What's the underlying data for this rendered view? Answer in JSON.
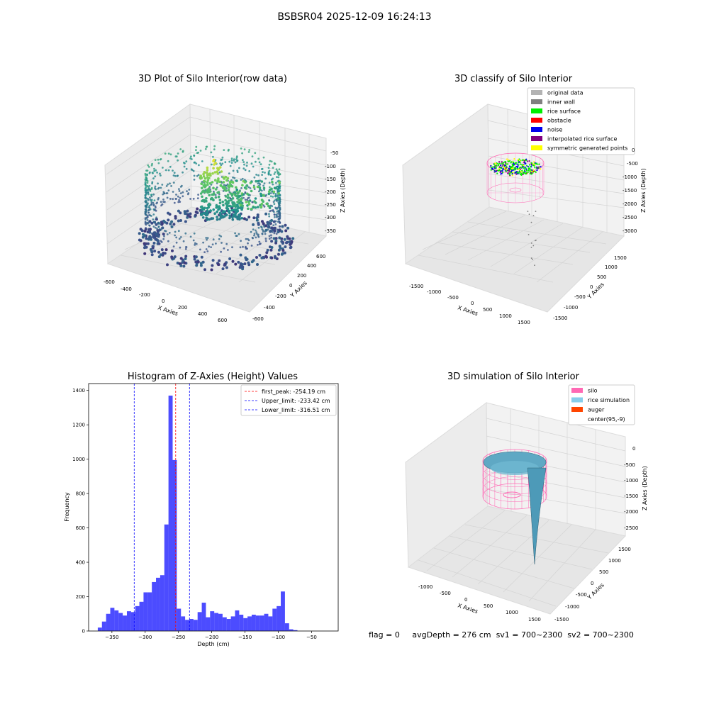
{
  "suptitle": "BSBSR04 2025-12-09 16:24:13",
  "panels": {
    "raw": {
      "title": "3D Plot of Silo Interior(row data)",
      "xlabel": "X Axies",
      "ylabel": "Y Axies",
      "zlabel": "Z Axies (Depth)",
      "xticks": [
        "-600",
        "-400",
        "-200",
        "0",
        "200",
        "400",
        "600"
      ],
      "yticks": [
        "600",
        "400",
        "200",
        "0",
        "-200",
        "-400",
        "-600"
      ],
      "zticks": [
        "-50",
        "-100",
        "-150",
        "-200",
        "-250",
        "-300",
        "-350"
      ]
    },
    "classify": {
      "title": "3D classify of Silo Interior",
      "xlabel": "X Axies",
      "ylabel": "Y Axies",
      "zlabel": "Z Axies (Depth)",
      "xticks": [
        "-1500",
        "-1000",
        "-500",
        "0",
        "500",
        "1000",
        "1500"
      ],
      "yticks": [
        "1500",
        "1000",
        "500",
        "0",
        "-500",
        "-1000",
        "-1500"
      ],
      "zticks": [
        "0",
        "-500",
        "-1000",
        "-1500",
        "-2000",
        "-2500",
        "-3000"
      ],
      "legend": [
        {
          "label": "original data",
          "color": "#b3b3b3"
        },
        {
          "label": "inner wall",
          "color": "#808080"
        },
        {
          "label": "rice surface",
          "color": "#00ee00"
        },
        {
          "label": "obstacle",
          "color": "#ff0000"
        },
        {
          "label": "noise",
          "color": "#0000ee"
        },
        {
          "label": "interpolated rice surface",
          "color": "#800080"
        },
        {
          "label": "symmetric generated points",
          "color": "#ffff00"
        }
      ]
    },
    "simulation": {
      "title": "3D simulation of Silo Interior",
      "xlabel": "X Axies",
      "ylabel": "Y Axies",
      "zlabel": "Z Axies (Depth)",
      "xticks": [
        "-1000",
        "-500",
        "0",
        "500",
        "1000",
        "1500"
      ],
      "yticks": [
        "1500",
        "1000",
        "500",
        "0",
        "-500",
        "-1000",
        "-1500"
      ],
      "zticks": [
        "0",
        "-500",
        "-1000",
        "-1500",
        "-2000",
        "-2500"
      ],
      "legend": [
        {
          "label": "silo",
          "color": "#ff69b4"
        },
        {
          "label": "rice simulation",
          "color": "#87ceeb"
        },
        {
          "label": "auger",
          "color": "#ff4500"
        },
        {
          "label": "center(95,-9)",
          "color": ""
        }
      ]
    }
  },
  "chart_data": {
    "type": "bar",
    "title": "Histogram of Z-Axies (Height) Values",
    "xlabel": "Depth (cm)",
    "ylabel": "Frequency",
    "xlim": [
      -385,
      -10
    ],
    "ylim": [
      0,
      1440
    ],
    "bin_width": 6.25,
    "bin_start": -371.25,
    "values": [
      20,
      55,
      100,
      135,
      120,
      105,
      90,
      115,
      110,
      145,
      170,
      225,
      225,
      285,
      310,
      325,
      620,
      1370,
      995,
      130,
      85,
      65,
      70,
      65,
      110,
      165,
      80,
      115,
      105,
      100,
      80,
      70,
      85,
      120,
      95,
      75,
      85,
      95,
      90,
      90,
      100,
      85,
      130,
      145,
      230,
      45,
      10,
      5
    ],
    "color": "#0000ff",
    "xticks": [
      -350,
      -300,
      -250,
      -200,
      -150,
      -100,
      -50
    ],
    "yticks": [
      0,
      200,
      400,
      600,
      800,
      1000,
      1200,
      1400
    ],
    "vlines": [
      {
        "label": "first_peak: -254.19 cm",
        "x": -254.19,
        "color": "#ff0000"
      },
      {
        "label": "Upper_limit: -233.42 cm",
        "x": -233.42,
        "color": "#0000ff"
      },
      {
        "label": "Lower_limit: -316.51 cm",
        "x": -316.51,
        "color": "#0000ff"
      }
    ],
    "legend_position": "upper right",
    "grid": false
  },
  "status": {
    "flag": "flag = 0",
    "avg": "avgDepth = 276 cm",
    "sv1": "sv1 = 700~2300",
    "sv2": "sv2 = 700~2300"
  }
}
